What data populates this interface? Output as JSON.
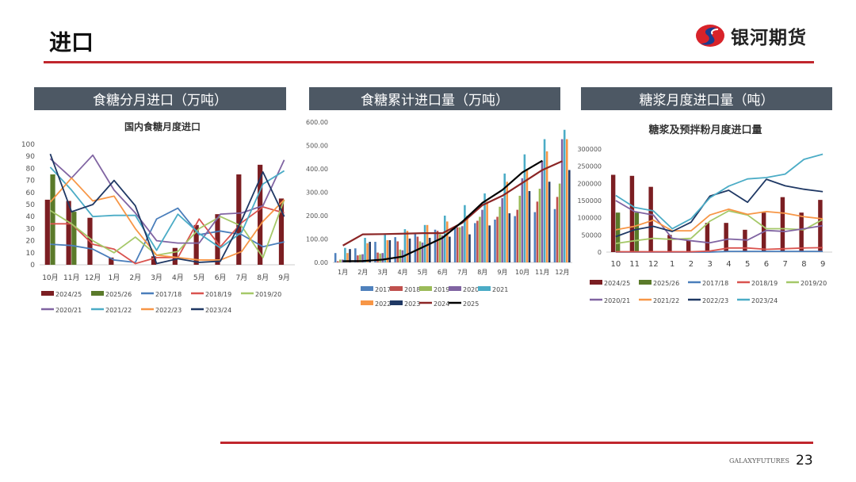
{
  "page": {
    "title": "进口",
    "logo_text": "银河期货",
    "footer_brand": "GALAXYFUTURES",
    "page_number": "23"
  },
  "panels": [
    "食糖分月进口（万吨）",
    "食糖累计进口量（万吨）",
    "糖浆月度进口量（吨）"
  ],
  "chart_data": [
    {
      "type": "bar+line",
      "title": "国内食糖月度进口",
      "categories": [
        "10月",
        "11月",
        "12月",
        "1月",
        "2月",
        "3月",
        "4月",
        "5月",
        "6月",
        "7月",
        "8月",
        "9月"
      ],
      "ylim": [
        0,
        100
      ],
      "yticks": [
        "0",
        "10",
        "20",
        "30",
        "40",
        "50",
        "60",
        "70",
        "80",
        "90",
        "100"
      ],
      "legend": "bottom",
      "bars": [
        {
          "name": "2024/25",
          "color": "#7b1e22",
          "values": [
            54,
            53,
            39,
            6,
            0,
            7,
            14,
            33,
            42,
            75,
            83,
            55
          ]
        },
        {
          "name": "2025/26",
          "color": "#5a7a2a",
          "values": [
            75,
            44,
            null,
            null,
            null,
            null,
            null,
            null,
            null,
            null,
            null,
            null
          ]
        }
      ],
      "lines": [
        {
          "name": "2017/18",
          "color": "#4a7ebb",
          "values": [
            17,
            16,
            13,
            4,
            2,
            38,
            47,
            25,
            28,
            25,
            15,
            19
          ]
        },
        {
          "name": "2018/19",
          "color": "#d9534f",
          "values": [
            34,
            34,
            17,
            13,
            1,
            6,
            6,
            38,
            15,
            35,
            48,
            43
          ]
        },
        {
          "name": "2019/20",
          "color": "#a5c868",
          "values": [
            45,
            34,
            20,
            10,
            23,
            8,
            11,
            30,
            40,
            32,
            6,
            54
          ]
        },
        {
          "name": "2020/21",
          "color": "#8064a2",
          "values": [
            88,
            72,
            91,
            62,
            43,
            20,
            18,
            18,
            42,
            43,
            49,
            87
          ]
        },
        {
          "name": "2021/22",
          "color": "#4bacc6",
          "values": [
            81,
            62,
            40,
            41,
            41,
            12,
            42,
            26,
            14,
            27,
            67,
            78
          ]
        },
        {
          "name": "2022/23",
          "color": "#f79646",
          "values": [
            52,
            72,
            53,
            57,
            30,
            8,
            6,
            4,
            4,
            11,
            36,
            54
          ]
        },
        {
          "name": "2023/24",
          "color": "#1f3864",
          "values": [
            92,
            44,
            50,
            70,
            49,
            1,
            5,
            2,
            3,
            37,
            77,
            40
          ]
        }
      ]
    },
    {
      "type": "bar+line",
      "title": "",
      "categories": [
        "1月",
        "2月",
        "3月",
        "4月",
        "5月",
        "6月",
        "7月",
        "8月",
        "9月",
        "10月",
        "11月",
        "12月"
      ],
      "ylim": [
        0,
        600
      ],
      "yticks": [
        "0.00",
        "100.00",
        "200.00",
        "300.00",
        "400.00",
        "500.00",
        "600.00"
      ],
      "legend": "bottom",
      "bars": [
        {
          "name": "2017",
          "color": "#4f81bd",
          "values": [
            40,
            60,
            88,
            108,
            125,
            140,
            150,
            168,
            183,
            198,
            215,
            228
          ]
        },
        {
          "name": "2018",
          "color": "#c0504d",
          "values": [
            5,
            30,
            42,
            90,
            110,
            135,
            150,
            178,
            195,
            225,
            260,
            280
          ]
        },
        {
          "name": "2019",
          "color": "#9bbb59",
          "values": [
            12,
            33,
            38,
            55,
            90,
            120,
            150,
            195,
            238,
            285,
            315,
            337
          ]
        },
        {
          "name": "2020",
          "color": "#8064a2",
          "values": [
            12,
            35,
            40,
            52,
            85,
            115,
            155,
            225,
            275,
            360,
            435,
            527
          ]
        },
        {
          "name": "2021",
          "color": "#4bacc6",
          "values": [
            62,
            105,
            118,
            142,
            160,
            200,
            245,
            295,
            380,
            462,
            527,
            567
          ]
        },
        {
          "name": "2022",
          "color": "#f79646",
          "values": [
            40,
            82,
            95,
            135,
            160,
            175,
            200,
            260,
            345,
            400,
            475,
            527
          ]
        },
        {
          "name": "2023",
          "color": "#1f3864",
          "values": [
            57,
            88,
            95,
            102,
            105,
            110,
            120,
            158,
            210,
            305,
            345,
            395
          ]
        }
      ],
      "lines": [
        {
          "name": "2024",
          "color": "#8b2525",
          "values": [
            72,
            120,
            121,
            123,
            125,
            125,
            170,
            245,
            285,
            340,
            395,
            433
          ]
        },
        {
          "name": "2025",
          "color": "#000000",
          "values": [
            5,
            6,
            12,
            25,
            65,
            105,
            175,
            255,
            310,
            385,
            435,
            null
          ]
        }
      ]
    },
    {
      "type": "bar+line",
      "title": "糖浆及预拌粉月度进口量",
      "categories": [
        "10",
        "11",
        "12",
        "1",
        "2",
        "3",
        "4",
        "5",
        "6",
        "7",
        "8",
        "9"
      ],
      "ylim": [
        0,
        300000
      ],
      "yticks": [
        "0",
        "50000",
        "100000",
        "150000",
        "200000",
        "250000",
        "300000"
      ],
      "legend": "bottom",
      "bars": [
        {
          "name": "2024/25",
          "color": "#7b1e22",
          "values": [
            225000,
            222000,
            190000,
            50000,
            35000,
            85000,
            85000,
            65000,
            115000,
            160000,
            115000,
            152000
          ]
        },
        {
          "name": "2025/26",
          "color": "#5a7a2a",
          "values": [
            115000,
            115000,
            null,
            null,
            null,
            null,
            null,
            null,
            null,
            null,
            null,
            null
          ]
        }
      ],
      "lines": [
        {
          "name": "2017/18",
          "color": "#4a7ebb",
          "values": [
            0,
            0,
            0,
            0,
            0,
            0,
            2000,
            2000,
            2000,
            2000,
            2000,
            2000
          ]
        },
        {
          "name": "2018/19",
          "color": "#d9534f",
          "values": [
            1000,
            1000,
            1000,
            1000,
            1000,
            3000,
            12000,
            12000,
            8000,
            10000,
            12000,
            13000
          ]
        },
        {
          "name": "2019/20",
          "color": "#a5c868",
          "values": [
            25000,
            33000,
            40000,
            37000,
            40000,
            90000,
            120000,
            108000,
            68000,
            68000,
            65000,
            95000
          ]
        },
        {
          "name": "2020/21",
          "color": "#8064a2",
          "values": [
            150000,
            118000,
            108000,
            40000,
            33000,
            27000,
            38000,
            35000,
            63000,
            60000,
            68000,
            77000
          ]
        },
        {
          "name": "2021/22",
          "color": "#f79646",
          "values": [
            65000,
            75000,
            93000,
            62000,
            62000,
            108000,
            125000,
            110000,
            118000,
            113000,
            103000,
            97000
          ]
        },
        {
          "name": "2022/23",
          "color": "#1f3864",
          "values": [
            45000,
            65000,
            75000,
            60000,
            87000,
            163000,
            180000,
            145000,
            212000,
            193000,
            183000,
            176000
          ]
        },
        {
          "name": "2023/24",
          "color": "#4bacc6",
          "values": [
            165000,
            130000,
            120000,
            68000,
            97000,
            158000,
            192000,
            213000,
            217000,
            227000,
            270000,
            285000
          ]
        }
      ]
    }
  ]
}
